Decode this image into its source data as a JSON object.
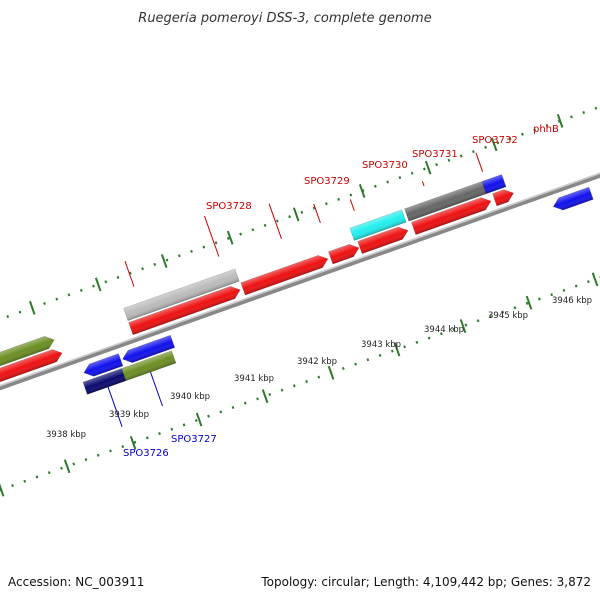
{
  "title": "Ruegeria pomeroyi DSS-3, complete genome",
  "footer": {
    "accession": "Accession: NC_003911",
    "stats": "Topology: circular; Length: 4,109,442 bp; Genes: 3,872"
  },
  "scale_labels": [
    "3938 kbp",
    "3939 kbp",
    "3940 kbp",
    "3941 kbp",
    "3942 kbp",
    "3943 kbp",
    "3944 kbp",
    "3945 kbp",
    "3946 kbp"
  ],
  "gene_labels": {
    "SPO3726": "SPO3726",
    "SPO3727": "SPO3727",
    "SPO3728": "SPO3728",
    "SPO3729": "SPO3729",
    "SPO3730": "SPO3730",
    "SPO3731": "SPO3731",
    "SPO3732": "SPO3732",
    "phhB": "phhB"
  },
  "colors": {
    "cds_red": "#ee1111",
    "cds_blue": "#1111ee",
    "cds_navy": "#0a0a6e",
    "cds_olive": "#6b8e23",
    "cds_cyan": "#22eeee",
    "cds_darkgray": "#666666",
    "cds_lightgray": "#bbbbbb",
    "backbone": "#888888",
    "ticks": "#2d7a2d",
    "label_red": "#cc0000",
    "label_blue": "#0000cc"
  }
}
